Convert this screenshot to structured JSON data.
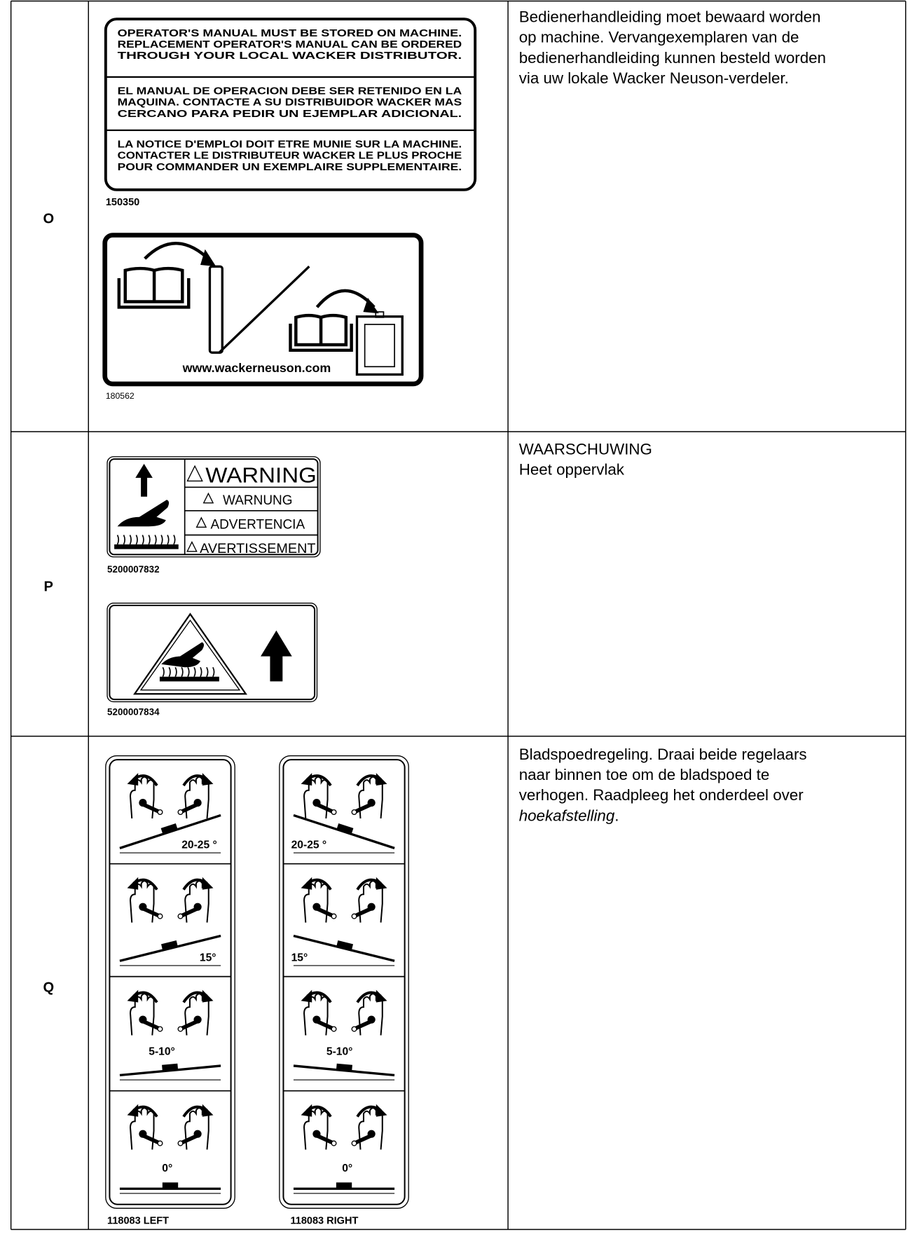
{
  "rows": [
    {
      "label": "O",
      "decals": [
        {
          "blocks": [
            [
              "OPERATOR'S MANUAL MUST BE STORED ON MACHINE.",
              "REPLACEMENT OPERATOR'S MANUAL CAN BE ORDERED",
              "THROUGH YOUR LOCAL WACKER DISTRIBUTOR."
            ],
            [
              "EL MANUAL DE OPERACION DEBE SER RETENIDO EN LA",
              "MAQUINA.  CONTACTE A SU DISTRIBUIDOR WACKER MAS",
              "CERCANO PARA PEDIR UN EJEMPLAR ADICIONAL."
            ],
            [
              "LA NOTICE D'EMPLOI DOIT ETRE MUNIE SUR LA MACHINE.",
              "CONTACTER LE DISTRIBUTEUR WACKER LE PLUS PROCHE",
              "POUR COMMANDER UN EXEMPLAIRE SUPPLEMENTAIRE."
            ]
          ],
          "part": "150350"
        },
        {
          "url": "www.wackerneuson.com",
          "part": "180562"
        }
      ],
      "description": [
        "Bedienerhandleiding moet bewaard worden",
        "op machine. Vervangexemplaren van de",
        "bedienerhandleiding kunnen besteld worden",
        "via uw lokale Wacker Neuson-verdeler."
      ]
    },
    {
      "label": "P",
      "decals": [
        {
          "words": [
            "WARNING",
            "WARNUNG",
            "ADVERTENCIA",
            "AVERTISSEMENT"
          ],
          "part": "5200007832"
        },
        {
          "part": "5200007834"
        }
      ],
      "description": [
        "WAARSCHUWING",
        "Heet oppervlak"
      ]
    },
    {
      "label": "Q",
      "panels": [
        {
          "steps": [
            "20-25 °",
            "15°",
            "5-10°",
            "0°"
          ],
          "part": "118083 LEFT"
        },
        {
          "steps": [
            "20-25 °",
            "15°",
            "5-10°",
            "0°"
          ],
          "part": "118083 RIGHT"
        }
      ],
      "description": [
        "Bladspoedregeling. Draai beide regelaars",
        "naar binnen toe om de bladspoed te",
        "verhogen. Raadpleeg het onderdeel over"
      ],
      "description_italic": "hoekafstelling",
      "description_end": "."
    }
  ]
}
